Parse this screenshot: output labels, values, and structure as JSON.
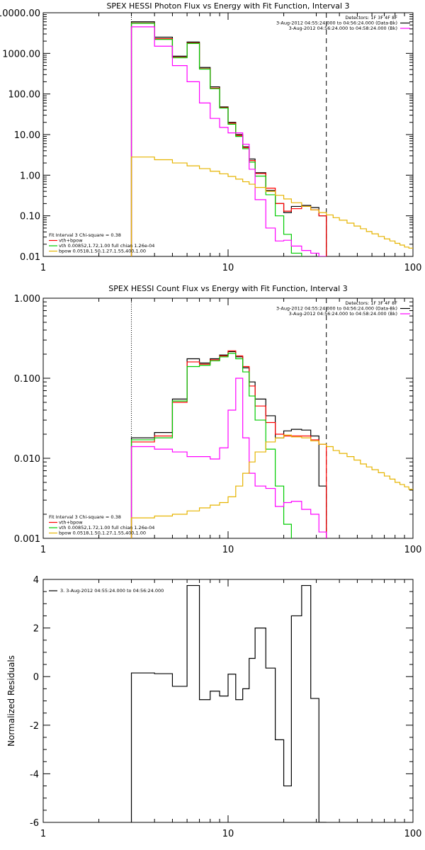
{
  "colors": {
    "data": "#000000",
    "total": "#ff0000",
    "vth": "#00cc00",
    "bpow": "#e6b400",
    "bk": "#ff00ff"
  },
  "chart_data": [
    {
      "type": "line",
      "title": "SPEX HESSI Photon Flux vs Energy with Fit Function, Interval 3",
      "xlabel": "",
      "ylabel": "",
      "xscale": "log",
      "yscale": "log",
      "xlim": [
        1,
        100
      ],
      "ylim": [
        0.01,
        10000
      ],
      "xticks": [
        "1",
        "10",
        "100"
      ],
      "yticks": [
        "10000.00",
        "1000.00",
        "100.00",
        "10.00",
        "1.00",
        "0.10",
        "0.01"
      ],
      "vlines": {
        "dotted": 3,
        "dashed": 34
      },
      "legend_top_right": [
        "Detectors: 1F 3F 4F 8F",
        "3-Aug-2012 04:55:24.000 to 04:56:24.000 (Data-Bk)",
        "3-Aug-2012 04:56:24.000 to 04:58:24.000 (Bk)"
      ],
      "legend_bottom_left": [
        "Fit Interval 3   Chi-square = 0.38",
        "vth+bpow",
        "vth 0.00852,1.72,1.00  full chian 1.26e-04",
        "bpow 0.0518,1.50,1.27,1.55,400,1.00"
      ],
      "energy_edges": [
        3,
        4,
        5,
        6,
        7,
        8,
        9,
        10,
        11,
        12,
        13,
        14,
        16,
        18,
        20,
        22,
        25,
        28,
        31,
        34
      ],
      "series": [
        {
          "color": "data",
          "values": [
            6000,
            2500,
            850,
            1900,
            450,
            150,
            48,
            20,
            10,
            5.0,
            2.5,
            1.15,
            0.42,
            0.2,
            0.12,
            0.17,
            0.18,
            0.16,
            0.1
          ]
        },
        {
          "color": "total",
          "values": [
            5600,
            2300,
            800,
            1800,
            420,
            140,
            46,
            19,
            9.5,
            4.8,
            2.3,
            1.1,
            0.48,
            0.2,
            0.13,
            0.15,
            0.17,
            0.14,
            0.1
          ]
        },
        {
          "color": "vth",
          "values": [
            5500,
            2200,
            780,
            1750,
            410,
            135,
            45,
            18,
            9.0,
            4.5,
            2.1,
            0.95,
            0.33,
            0.1,
            0.035,
            0.012
          ]
        },
        {
          "color": "bk",
          "values": [
            4500,
            1500,
            500,
            200,
            60,
            25,
            15,
            11,
            11,
            5.8,
            1.4,
            0.25,
            0.05,
            0.024,
            0.025,
            0.018,
            0.014,
            0.012,
            0.01
          ]
        },
        {
          "color": "bpow",
          "x": [
            3,
            4,
            5,
            6,
            7,
            8,
            9,
            10,
            11,
            12,
            13,
            14,
            16,
            18,
            20,
            22,
            25,
            28,
            31,
            34,
            37,
            40,
            44,
            48,
            52,
            56,
            60,
            65,
            70,
            75,
            80,
            85,
            90,
            95,
            100
          ],
          "values": [
            2.8,
            2.4,
            2.0,
            1.7,
            1.45,
            1.25,
            1.08,
            0.93,
            0.8,
            0.69,
            0.6,
            0.5,
            0.4,
            0.32,
            0.26,
            0.21,
            0.17,
            0.14,
            0.12,
            0.105,
            0.09,
            0.078,
            0.066,
            0.056,
            0.048,
            0.041,
            0.036,
            0.031,
            0.027,
            0.024,
            0.021,
            0.019,
            0.017,
            0.016,
            0.015
          ]
        }
      ]
    },
    {
      "type": "line",
      "title": "SPEX HESSI Count Flux vs Energy with Fit Function, Interval 3",
      "xlabel": "",
      "ylabel": "",
      "xscale": "log",
      "yscale": "log",
      "xlim": [
        1,
        100
      ],
      "ylim": [
        0.001,
        1
      ],
      "xticks": [
        "1",
        "10",
        "100"
      ],
      "yticks": [
        "1.000",
        "0.100",
        "0.010",
        "0.001"
      ],
      "vlines": {
        "dotted": 3,
        "dashed": 34
      },
      "legend_top_right": [
        "Detectors: 1F 3F 4F 8F",
        "3-Aug-2012 04:55:24.000 to 04:56:24.000 (Data-Bk)",
        "3-Aug-2012 04:56:24.000 to 04:58:24.000 (Bk)"
      ],
      "legend_bottom_left": [
        "Fit Interval 3   Chi-square = 0.38",
        "vth+bpow",
        "vth 0.00852,1.72,1.00  full chian 1.26e-04",
        "bpow 0.0518,1.50,1.27,1.55,400,1.00"
      ],
      "energy_edges": [
        3,
        4,
        5,
        6,
        7,
        8,
        9,
        10,
        11,
        12,
        13,
        14,
        16,
        18,
        20,
        22,
        25,
        28,
        31,
        34
      ],
      "series": [
        {
          "color": "data",
          "values": [
            0.018,
            0.021,
            0.055,
            0.175,
            0.155,
            0.175,
            0.195,
            0.215,
            0.185,
            0.135,
            0.09,
            0.055,
            0.034,
            0.018,
            0.022,
            0.023,
            0.0225,
            0.019,
            0.0045
          ]
        },
        {
          "color": "total",
          "values": [
            0.016,
            0.019,
            0.05,
            0.16,
            0.15,
            0.17,
            0.19,
            0.22,
            0.19,
            0.14,
            0.08,
            0.045,
            0.028,
            0.02,
            0.019,
            0.019,
            0.019,
            0.017,
            0.015
          ]
        },
        {
          "color": "vth",
          "values": [
            0.017,
            0.018,
            0.052,
            0.14,
            0.145,
            0.165,
            0.185,
            0.205,
            0.175,
            0.12,
            0.06,
            0.03,
            0.013,
            0.0045,
            0.0015
          ]
        },
        {
          "color": "bk",
          "values": [
            0.014,
            0.013,
            0.012,
            0.0105,
            0.0105,
            0.0098,
            0.0135,
            0.04,
            0.1,
            0.018,
            0.0065,
            0.0045,
            0.0042,
            0.0025,
            0.0028,
            0.0029,
            0.0023,
            0.002,
            0.0012
          ]
        },
        {
          "color": "bpow",
          "x": [
            3,
            4,
            5,
            6,
            7,
            8,
            9,
            10,
            11,
            12,
            13,
            14,
            16,
            18,
            20,
            22,
            25,
            28,
            31,
            34,
            37,
            40,
            44,
            48,
            52,
            56,
            60,
            65,
            70,
            75,
            80,
            85,
            90,
            95,
            100
          ],
          "values": [
            0.0018,
            0.0019,
            0.002,
            0.0022,
            0.0024,
            0.0026,
            0.0028,
            0.0033,
            0.0045,
            0.0065,
            0.009,
            0.012,
            0.016,
            0.018,
            0.0195,
            0.0185,
            0.018,
            0.0165,
            0.015,
            0.014,
            0.0125,
            0.0115,
            0.0105,
            0.0095,
            0.0085,
            0.0078,
            0.0072,
            0.0066,
            0.006,
            0.0055,
            0.005,
            0.0047,
            0.0044,
            0.0041,
            0.0037
          ]
        }
      ]
    },
    {
      "type": "line",
      "title": "",
      "xlabel": "",
      "ylabel": "Normalized Residuals",
      "xscale": "log",
      "yscale": "linear",
      "xlim": [
        1,
        100
      ],
      "ylim": [
        -6,
        4
      ],
      "xticks": [
        "1",
        "10",
        "100"
      ],
      "yticks": [
        "4",
        "2",
        "0",
        "-2",
        "-4",
        "-6"
      ],
      "legend_top_left": [
        "3.  3-Aug-2012 04:55:24.000 to 04:56:24.000"
      ],
      "energy_edges": [
        3,
        4,
        5,
        6,
        7,
        8,
        9,
        10,
        11,
        12,
        13,
        14,
        16,
        18,
        20,
        22,
        25,
        28,
        31,
        34
      ],
      "series": [
        {
          "color": "data",
          "values": [
            0.15,
            0.12,
            -0.4,
            3.75,
            -0.95,
            -0.6,
            -0.8,
            0.1,
            -0.95,
            -0.5,
            0.75,
            2.0,
            0.35,
            -2.6,
            -4.5,
            2.5,
            3.75,
            -0.9,
            -6
          ]
        }
      ]
    }
  ]
}
